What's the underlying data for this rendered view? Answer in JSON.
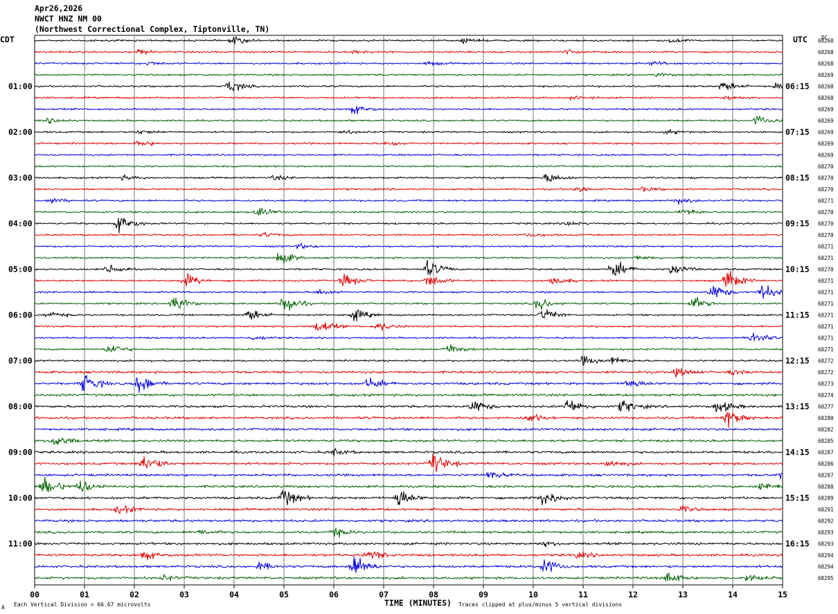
{
  "header": {
    "date": "Apr26,2026",
    "station": "NWCT HNZ NM 00",
    "location": "(Northwest Correctional Complex, Tiptonville, TN)",
    "left_tz": "CDT",
    "right_tz": "UTC",
    "dc_label": "DC"
  },
  "footer": {
    "division_note": "Each Vertical Division =   66.67 microvolts",
    "clip_note": "Traces clipped at plus/minus 5 vertical divisions",
    "corner_mark": "A"
  },
  "chart_data": {
    "type": "line",
    "title": "NWCT HNZ NM 00",
    "xlabel": "TIME (MINUTES)",
    "ylabel": "",
    "xlim": [
      0,
      15
    ],
    "x_ticks": [
      "00",
      "01",
      "02",
      "03",
      "04",
      "05",
      "06",
      "07",
      "08",
      "09",
      "10",
      "11",
      "12",
      "13",
      "14",
      "15"
    ],
    "trace_colors": [
      "#000000",
      "#e00000",
      "#0000e0",
      "#006000"
    ],
    "traces_per_hour": 4,
    "minutes_per_trace": 15,
    "left_hour_labels": [
      "01:00",
      "02:00",
      "03:00",
      "04:00",
      "05:00",
      "06:00",
      "07:00",
      "08:00",
      "09:00",
      "10:00",
      "11:00"
    ],
    "right_hour_labels": [
      "06:15",
      "07:15",
      "08:15",
      "09:15",
      "10:15",
      "11:15",
      "12:15",
      "13:15",
      "14:15",
      "15:15",
      "16:15"
    ],
    "dc_offsets": [
      "68268",
      "68268",
      "68268",
      "68269",
      "68268",
      "68268",
      "68269",
      "68269",
      "68269",
      "68269",
      "68269",
      "68270",
      "68270",
      "68270",
      "68271",
      "68270",
      "68270",
      "68270",
      "68271",
      "68271",
      "68270",
      "68271",
      "68271",
      "68271",
      "68271",
      "68271",
      "68271",
      "68271",
      "68272",
      "68272",
      "68273",
      "68274",
      "68277",
      "68280",
      "68282",
      "68285",
      "68287",
      "68286",
      "68287",
      "68288",
      "68289",
      "68291",
      "68292",
      "68293",
      "68293",
      "68294",
      "68294",
      "68295"
    ],
    "events": [
      {
        "trace": 0,
        "minute": 4.0,
        "amp": 0.5
      },
      {
        "trace": 0,
        "minute": 8.6,
        "amp": 0.3
      },
      {
        "trace": 0,
        "minute": 12.8,
        "amp": 0.3
      },
      {
        "trace": 1,
        "minute": 2.1,
        "amp": 0.3
      },
      {
        "trace": 1,
        "minute": 6.4,
        "amp": 0.2
      },
      {
        "trace": 1,
        "minute": 10.7,
        "amp": 0.3
      },
      {
        "trace": 2,
        "minute": 2.3,
        "amp": 0.25
      },
      {
        "trace": 2,
        "minute": 7.9,
        "amp": 0.25
      },
      {
        "trace": 2,
        "minute": 12.4,
        "amp": 0.25
      },
      {
        "trace": 3,
        "minute": 12.5,
        "amp": 0.25
      },
      {
        "trace": 4,
        "minute": 3.9,
        "amp": 0.8
      },
      {
        "trace": 4,
        "minute": 13.8,
        "amp": 0.7
      },
      {
        "trace": 4,
        "minute": 14.9,
        "amp": 0.7
      },
      {
        "trace": 5,
        "minute": 10.8,
        "amp": 0.3
      },
      {
        "trace": 5,
        "minute": 13.9,
        "amp": 0.3
      },
      {
        "trace": 6,
        "minute": 6.4,
        "amp": 0.6
      },
      {
        "trace": 7,
        "minute": 14.5,
        "amp": 0.7
      },
      {
        "trace": 7,
        "minute": 0.3,
        "amp": 0.3
      },
      {
        "trace": 8,
        "minute": 2.1,
        "amp": 0.3
      },
      {
        "trace": 8,
        "minute": 6.2,
        "amp": 0.2
      },
      {
        "trace": 8,
        "minute": 12.7,
        "amp": 0.3
      },
      {
        "trace": 9,
        "minute": 2.1,
        "amp": 0.4
      },
      {
        "trace": 9,
        "minute": 7.1,
        "amp": 0.4
      },
      {
        "trace": 12,
        "minute": 1.8,
        "amp": 0.3
      },
      {
        "trace": 12,
        "minute": 4.8,
        "amp": 0.3
      },
      {
        "trace": 12,
        "minute": 10.3,
        "amp": 0.7
      },
      {
        "trace": 13,
        "minute": 10.9,
        "amp": 0.4
      },
      {
        "trace": 13,
        "minute": 12.2,
        "amp": 0.3
      },
      {
        "trace": 14,
        "minute": 0.3,
        "amp": 0.4
      },
      {
        "trace": 14,
        "minute": 12.9,
        "amp": 0.4
      },
      {
        "trace": 15,
        "minute": 4.5,
        "amp": 0.6
      },
      {
        "trace": 15,
        "minute": 13.0,
        "amp": 0.5
      },
      {
        "trace": 16,
        "minute": 1.7,
        "amp": 1.2
      },
      {
        "trace": 16,
        "minute": 10.7,
        "amp": 0.3
      },
      {
        "trace": 17,
        "minute": 4.6,
        "amp": 0.3
      },
      {
        "trace": 17,
        "minute": 9.9,
        "amp": 0.3
      },
      {
        "trace": 18,
        "minute": 5.3,
        "amp": 0.3
      },
      {
        "trace": 19,
        "minute": 4.9,
        "amp": 1.0
      },
      {
        "trace": 19,
        "minute": 12.1,
        "amp": 0.3
      },
      {
        "trace": 20,
        "minute": 1.5,
        "amp": 0.7
      },
      {
        "trace": 20,
        "minute": 7.9,
        "amp": 1.2
      },
      {
        "trace": 20,
        "minute": 11.6,
        "amp": 1.3
      },
      {
        "trace": 20,
        "minute": 12.8,
        "amp": 0.9
      },
      {
        "trace": 21,
        "minute": 3.0,
        "amp": 1.0
      },
      {
        "trace": 21,
        "minute": 6.2,
        "amp": 0.9
      },
      {
        "trace": 21,
        "minute": 7.9,
        "amp": 0.9
      },
      {
        "trace": 21,
        "minute": 10.4,
        "amp": 0.6
      },
      {
        "trace": 21,
        "minute": 13.9,
        "amp": 1.4
      },
      {
        "trace": 22,
        "minute": 5.7,
        "amp": 0.4
      },
      {
        "trace": 22,
        "minute": 13.6,
        "amp": 1.1
      },
      {
        "trace": 22,
        "minute": 14.6,
        "amp": 1.1
      },
      {
        "trace": 23,
        "minute": 2.8,
        "amp": 1.1
      },
      {
        "trace": 23,
        "minute": 5.0,
        "amp": 1.4
      },
      {
        "trace": 23,
        "minute": 10.1,
        "amp": 0.9
      },
      {
        "trace": 23,
        "minute": 13.2,
        "amp": 0.9
      },
      {
        "trace": 24,
        "minute": 0.3,
        "amp": 0.5
      },
      {
        "trace": 24,
        "minute": 4.3,
        "amp": 0.8
      },
      {
        "trace": 24,
        "minute": 6.4,
        "amp": 0.8
      },
      {
        "trace": 24,
        "minute": 10.2,
        "amp": 0.9
      },
      {
        "trace": 25,
        "minute": 5.7,
        "amp": 1.0
      },
      {
        "trace": 25,
        "minute": 6.9,
        "amp": 0.6
      },
      {
        "trace": 26,
        "minute": 14.4,
        "amp": 0.9
      },
      {
        "trace": 26,
        "minute": 4.4,
        "amp": 0.3
      },
      {
        "trace": 27,
        "minute": 1.5,
        "amp": 0.8
      },
      {
        "trace": 27,
        "minute": 8.3,
        "amp": 0.8
      },
      {
        "trace": 28,
        "minute": 11.0,
        "amp": 0.6
      },
      {
        "trace": 28,
        "minute": 11.6,
        "amp": 0.5
      },
      {
        "trace": 29,
        "minute": 12.9,
        "amp": 0.6
      },
      {
        "trace": 29,
        "minute": 14.0,
        "amp": 0.3
      },
      {
        "trace": 30,
        "minute": 1.0,
        "amp": 1.3
      },
      {
        "trace": 30,
        "minute": 2.1,
        "amp": 1.3
      },
      {
        "trace": 30,
        "minute": 6.7,
        "amp": 0.8
      },
      {
        "trace": 30,
        "minute": 11.9,
        "amp": 0.7
      },
      {
        "trace": 32,
        "minute": 8.8,
        "amp": 0.9
      },
      {
        "trace": 32,
        "minute": 10.7,
        "amp": 1.1
      },
      {
        "trace": 32,
        "minute": 11.8,
        "amp": 0.9
      },
      {
        "trace": 32,
        "minute": 13.7,
        "amp": 0.9
      },
      {
        "trace": 33,
        "minute": 9.9,
        "amp": 0.6
      },
      {
        "trace": 33,
        "minute": 13.9,
        "amp": 1.2
      },
      {
        "trace": 35,
        "minute": 0.4,
        "amp": 0.9
      },
      {
        "trace": 36,
        "minute": 6.0,
        "amp": 0.4
      },
      {
        "trace": 37,
        "minute": 2.2,
        "amp": 1.3
      },
      {
        "trace": 37,
        "minute": 8.0,
        "amp": 1.4
      },
      {
        "trace": 37,
        "minute": 11.5,
        "amp": 0.5
      },
      {
        "trace": 38,
        "minute": 9.1,
        "amp": 0.5
      },
      {
        "trace": 38,
        "minute": 15.0,
        "amp": 1.2
      },
      {
        "trace": 39,
        "minute": 0.2,
        "amp": 1.4
      },
      {
        "trace": 39,
        "minute": 0.9,
        "amp": 1.0
      },
      {
        "trace": 39,
        "minute": 14.6,
        "amp": 0.6
      },
      {
        "trace": 40,
        "minute": 5.0,
        "amp": 1.2
      },
      {
        "trace": 40,
        "minute": 7.3,
        "amp": 1.3
      },
      {
        "trace": 40,
        "minute": 10.2,
        "amp": 1.1
      },
      {
        "trace": 41,
        "minute": 1.7,
        "amp": 0.6
      },
      {
        "trace": 41,
        "minute": 13.0,
        "amp": 0.4
      },
      {
        "trace": 43,
        "minute": 3.3,
        "amp": 0.4
      },
      {
        "trace": 43,
        "minute": 6.0,
        "amp": 0.6
      },
      {
        "trace": 44,
        "minute": 10.2,
        "amp": 0.3
      },
      {
        "trace": 45,
        "minute": 2.2,
        "amp": 0.6
      },
      {
        "trace": 45,
        "minute": 6.7,
        "amp": 0.7
      },
      {
        "trace": 45,
        "minute": 10.9,
        "amp": 0.4
      },
      {
        "trace": 46,
        "minute": 6.4,
        "amp": 1.6
      },
      {
        "trace": 46,
        "minute": 10.2,
        "amp": 1.3
      },
      {
        "trace": 46,
        "minute": 4.5,
        "amp": 0.5
      },
      {
        "trace": 47,
        "minute": 12.7,
        "amp": 0.8
      },
      {
        "trace": 47,
        "minute": 14.3,
        "amp": 0.5
      },
      {
        "trace": 47,
        "minute": 2.6,
        "amp": 0.3
      }
    ]
  }
}
